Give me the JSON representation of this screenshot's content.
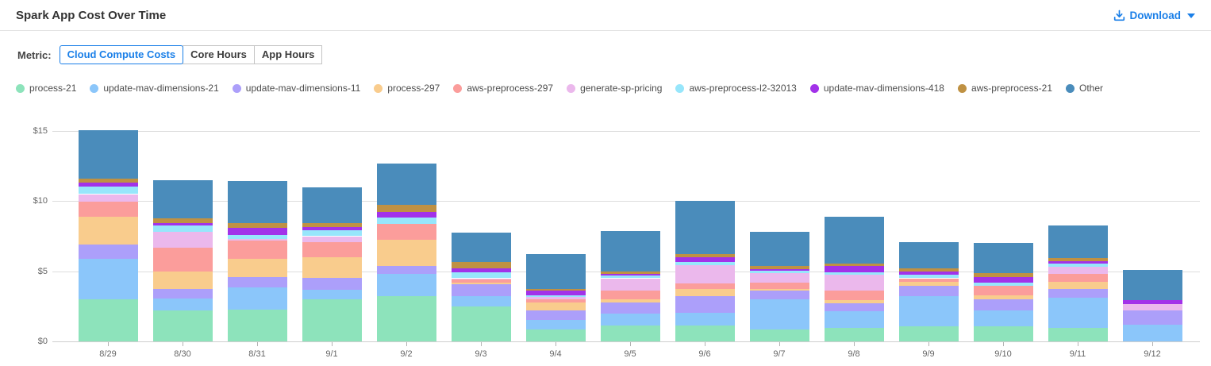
{
  "header": {
    "title": "Spark App Cost Over Time",
    "download_label": "Download"
  },
  "metric": {
    "label": "Metric:",
    "tabs": [
      {
        "label": "Cloud Compute Costs",
        "active": true
      },
      {
        "label": "Core Hours",
        "active": false
      },
      {
        "label": "App Hours",
        "active": false
      }
    ]
  },
  "colors": {
    "accent_blue": "#1a7fe8",
    "gridline": "#dcdcdc",
    "axis_text": "#666666"
  },
  "chart_data": {
    "type": "bar",
    "stacked": true,
    "title": "Spark App Cost Over Time",
    "xlabel": "",
    "ylabel": "",
    "ylim": [
      0,
      15
    ],
    "y_ticks": [
      "$0",
      "$5",
      "$10",
      "$15"
    ],
    "y_tick_values": [
      0,
      5,
      10,
      15
    ],
    "grid": true,
    "legend_position": "top-left",
    "categories": [
      "8/29",
      "8/30",
      "8/31",
      "9/1",
      "9/2",
      "9/3",
      "9/4",
      "9/5",
      "9/6",
      "9/7",
      "9/8",
      "9/9",
      "9/10",
      "9/11",
      "9/12"
    ],
    "series": [
      {
        "name": "process-21",
        "color": "#8de3bb",
        "values": [
          3.0,
          2.2,
          2.25,
          3.0,
          3.2,
          2.5,
          0.85,
          1.15,
          1.15,
          0.85,
          0.95,
          1.1,
          1.1,
          0.95,
          0
        ]
      },
      {
        "name": "update-mav-dimensions-21",
        "color": "#8bc6fa",
        "values": [
          2.9,
          0.85,
          1.6,
          0.7,
          1.6,
          0.75,
          0.7,
          0.85,
          0.9,
          2.15,
          1.2,
          2.1,
          1.1,
          2.15,
          1.2
        ]
      },
      {
        "name": "update-mav-dimensions-11",
        "color": "#ac9ffa",
        "values": [
          1.0,
          0.7,
          0.75,
          0.85,
          0.6,
          0.8,
          0.65,
          0.75,
          1.15,
          0.6,
          0.55,
          0.75,
          0.8,
          0.65,
          1.0
        ]
      },
      {
        "name": "process-297",
        "color": "#f9cc8d",
        "values": [
          2.0,
          1.25,
          1.3,
          1.45,
          1.85,
          0.15,
          0.55,
          0.25,
          0.55,
          0.15,
          0.25,
          0.3,
          0.3,
          0.5,
          0
        ]
      },
      {
        "name": "aws-preprocess-297",
        "color": "#fb9d9b",
        "values": [
          1.05,
          1.7,
          1.3,
          1.1,
          1.15,
          0.2,
          0.25,
          0.6,
          0.4,
          0.45,
          0.7,
          0.25,
          0.65,
          0.55,
          0
        ]
      },
      {
        "name": "generate-sp-pricing",
        "color": "#ebb8ec",
        "values": [
          0.55,
          1.1,
          0.1,
          0.4,
          0,
          0.1,
          0.15,
          0.9,
          1.3,
          0.65,
          1.1,
          0,
          0,
          0.5,
          0.45
        ]
      },
      {
        "name": "aws-preprocess-l2-32013",
        "color": "#97e6fb",
        "values": [
          0.55,
          0.45,
          0.3,
          0.45,
          0.45,
          0.4,
          0.15,
          0.2,
          0.2,
          0.2,
          0.2,
          0.25,
          0.25,
          0.25,
          0
        ]
      },
      {
        "name": "update-mav-dimensions-418",
        "color": "#a232e9",
        "values": [
          0.25,
          0.2,
          0.5,
          0.2,
          0.35,
          0.3,
          0.3,
          0.1,
          0.35,
          0.1,
          0.4,
          0.25,
          0.4,
          0.15,
          0.3
        ]
      },
      {
        "name": "aws-preprocess-21",
        "color": "#bf9143",
        "values": [
          0.3,
          0.35,
          0.35,
          0.3,
          0.55,
          0.45,
          0.15,
          0.2,
          0.25,
          0.25,
          0.2,
          0.2,
          0.25,
          0.25,
          0
        ]
      },
      {
        "name": "Other",
        "color": "#4a8cbb",
        "values": [
          3.45,
          2.7,
          3.0,
          2.55,
          2.95,
          2.1,
          2.5,
          2.85,
          3.75,
          2.4,
          3.35,
          1.9,
          2.15,
          2.3,
          2.15
        ]
      }
    ]
  }
}
